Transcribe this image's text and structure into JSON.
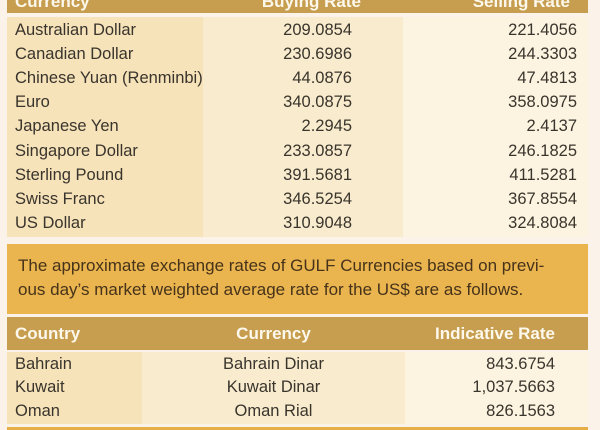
{
  "table1": {
    "header": {
      "col1": "Currency",
      "col2": "Buying Rate",
      "col3": "Selling Rate"
    },
    "rows": [
      {
        "name": "Australian Dollar",
        "buy": "209.0854",
        "sell": "221.4056"
      },
      {
        "name": "Canadian Dollar",
        "buy": "230.6986",
        "sell": "244.3303"
      },
      {
        "name": "Chinese Yuan (Renminbi)",
        "buy": "44.0876",
        "sell": "47.4813"
      },
      {
        "name": "Euro",
        "buy": "340.0875",
        "sell": "358.0975"
      },
      {
        "name": "Japanese Yen",
        "buy": "2.2945",
        "sell": "2.4137"
      },
      {
        "name": "Singapore Dollar",
        "buy": "233.0857",
        "sell": "246.1825"
      },
      {
        "name": "Sterling Pound",
        "buy": "391.5681",
        "sell": "411.5281"
      },
      {
        "name": "Swiss Franc",
        "buy": "346.5254",
        "sell": "367.8554"
      },
      {
        "name": "US Dollar",
        "buy": "310.9048",
        "sell": "324.8084"
      }
    ]
  },
  "note": {
    "line1": "The approximate exchange rates of GULF Currencies based on previ-",
    "line2": "ous day’s market weighted average rate for the US$ are as follows."
  },
  "table2": {
    "header": {
      "col1": "Country",
      "col2": "Currency",
      "col3": "Indicative Rate"
    },
    "rows": [
      {
        "country": "Bahrain",
        "currency": "Bahrain Dinar",
        "rate": "843.6754"
      },
      {
        "country": "Kuwait",
        "currency": "Kuwait Dinar",
        "rate": "1,037.5663"
      },
      {
        "country": "Oman",
        "currency": "Oman Rial",
        "rate": "826.1563"
      }
    ]
  },
  "colors": {
    "header_band": "#c79e4f",
    "note_band": "#eab44f",
    "column_tan": "#f6e3ba",
    "column_cream": "#f9ecce",
    "column_light": "#fcf4e1",
    "header_text": "#fdf8ec",
    "body_text": "#39342c",
    "note_text": "#46331a",
    "page_background": "#fbf2e9",
    "bottom_strip": "#e6ae47"
  }
}
